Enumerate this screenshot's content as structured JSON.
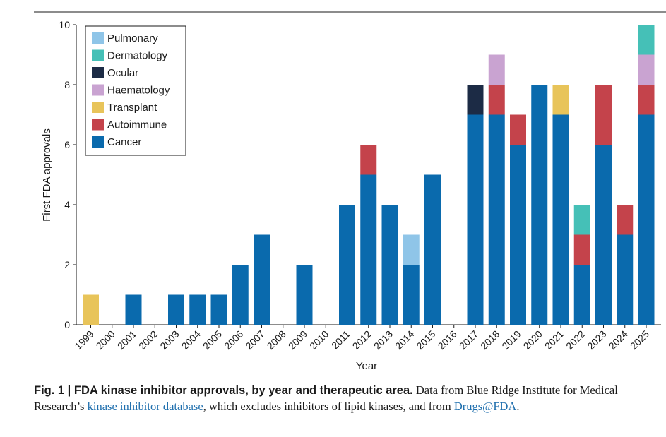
{
  "chart_data": {
    "type": "bar",
    "stacked": true,
    "title": "",
    "xlabel": "Year",
    "ylabel": "First FDA approvals",
    "ylim": [
      0,
      10
    ],
    "yticks": [
      0,
      2,
      4,
      6,
      8,
      10
    ],
    "categories": [
      "1999",
      "2000",
      "2001",
      "2002",
      "2003",
      "2004",
      "2005",
      "2006",
      "2007",
      "2008",
      "2009",
      "2010",
      "2011",
      "2012",
      "2013",
      "2014",
      "2015",
      "2016",
      "2017",
      "2018",
      "2019",
      "2020",
      "2021",
      "2022",
      "2023",
      "2024",
      "2025"
    ],
    "series": [
      {
        "name": "Cancer",
        "color": "#0a6aad",
        "values": [
          0,
          0,
          1,
          0,
          1,
          1,
          1,
          2,
          3,
          0,
          2,
          0,
          4,
          5,
          4,
          2,
          5,
          0,
          7,
          7,
          6,
          8,
          7,
          2,
          6,
          3,
          7
        ]
      },
      {
        "name": "Autoimmune",
        "color": "#c4434b",
        "values": [
          0,
          0,
          0,
          0,
          0,
          0,
          0,
          0,
          0,
          0,
          0,
          0,
          0,
          1,
          0,
          0,
          0,
          0,
          0,
          1,
          1,
          0,
          0,
          1,
          2,
          1,
          1
        ]
      },
      {
        "name": "Transplant",
        "color": "#e8c45a",
        "values": [
          1,
          0,
          0,
          0,
          0,
          0,
          0,
          0,
          0,
          0,
          0,
          0,
          0,
          0,
          0,
          0,
          0,
          0,
          0,
          0,
          0,
          0,
          1,
          0,
          0,
          0,
          0
        ]
      },
      {
        "name": "Haematology",
        "color": "#c9a3d1",
        "values": [
          0,
          0,
          0,
          0,
          0,
          0,
          0,
          0,
          0,
          0,
          0,
          0,
          0,
          0,
          0,
          0,
          0,
          0,
          0,
          1,
          0,
          0,
          0,
          0,
          0,
          0,
          1
        ]
      },
      {
        "name": "Ocular",
        "color": "#1c2b45",
        "values": [
          0,
          0,
          0,
          0,
          0,
          0,
          0,
          0,
          0,
          0,
          0,
          0,
          0,
          0,
          0,
          0,
          0,
          0,
          1,
          0,
          0,
          0,
          0,
          0,
          0,
          0,
          0
        ]
      },
      {
        "name": "Dermatology",
        "color": "#45c0b7",
        "values": [
          0,
          0,
          0,
          0,
          0,
          0,
          0,
          0,
          0,
          0,
          0,
          0,
          0,
          0,
          0,
          0,
          0,
          0,
          0,
          0,
          0,
          0,
          0,
          1,
          0,
          0,
          1
        ]
      },
      {
        "name": "Pulmonary",
        "color": "#8fc5e8",
        "values": [
          0,
          0,
          0,
          0,
          0,
          0,
          0,
          0,
          0,
          0,
          0,
          0,
          0,
          0,
          0,
          1,
          0,
          0,
          0,
          0,
          0,
          0,
          0,
          0,
          0,
          0,
          0
        ]
      }
    ],
    "legend_order": [
      "Pulmonary",
      "Dermatology",
      "Ocular",
      "Haematology",
      "Transplant",
      "Autoimmune",
      "Cancer"
    ],
    "legend_position": "top-left"
  },
  "caption": {
    "bold": "Fig. 1 | FDA kinase inhibitor approvals, by year and therapeutic area.",
    "text1": " Data from Blue Ridge Institute for Medical Research’s ",
    "link1": "kinase inhibitor database",
    "text2": ", which excludes inhibitors of lipid kinases, and from ",
    "link2": "Drugs@FDA",
    "text3": "."
  }
}
